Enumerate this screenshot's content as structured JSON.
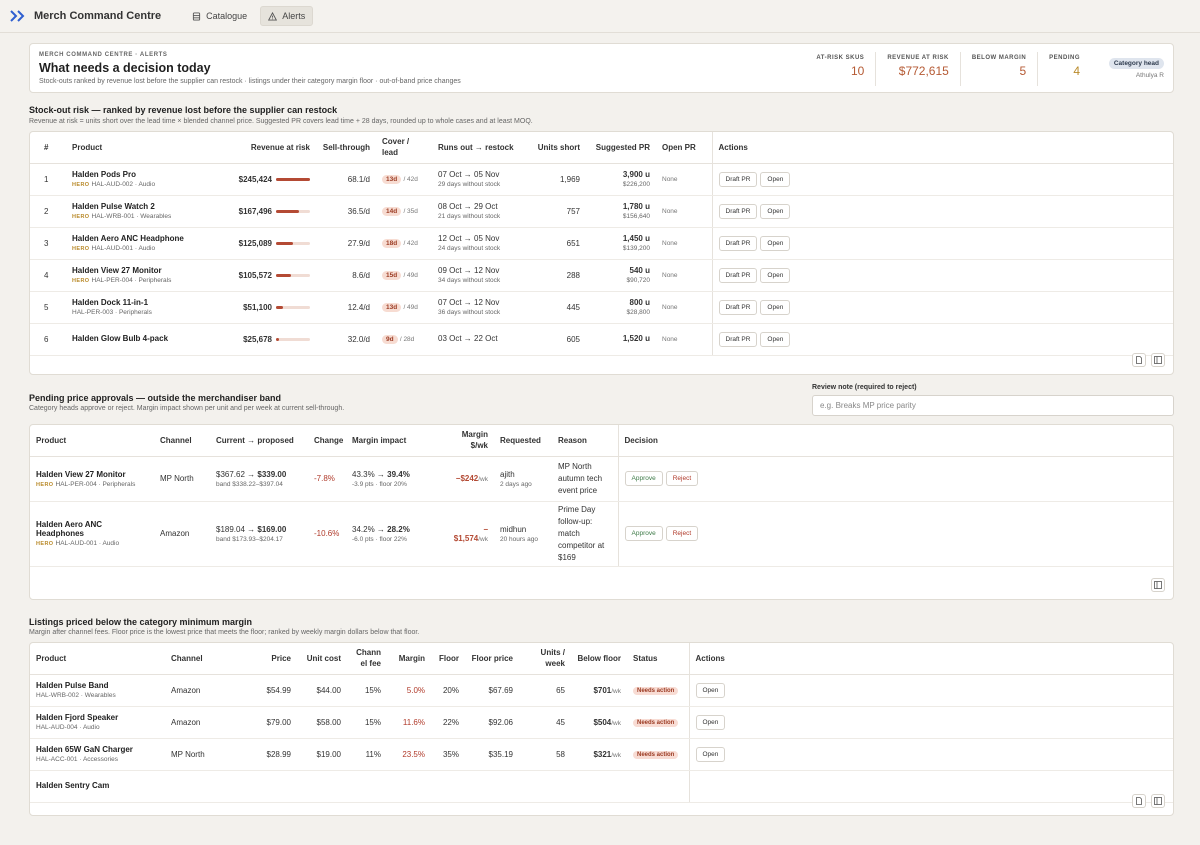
{
  "app": {
    "title": "Merch Command Centre"
  },
  "nav": [
    {
      "label": "Catalogue",
      "icon": "catalogue-icon"
    },
    {
      "label": "Alerts",
      "icon": "alert-triangle-icon",
      "active": true
    }
  ],
  "header": {
    "eyebrow": "MERCH COMMAND CENTRE · ALERTS",
    "title": "What needs a decision today",
    "subtitle": "Stock-outs ranked by revenue lost before the supplier can restock · listings under their category margin floor · out-of-band price changes",
    "kpis": [
      {
        "label": "AT-RISK SKUS",
        "value": "10"
      },
      {
        "label": "REVENUE AT RISK",
        "value": "$772,615"
      },
      {
        "label": "BELOW MARGIN",
        "value": "5"
      },
      {
        "label": "PENDING",
        "value": "4"
      }
    ],
    "role": "Category head",
    "user": "Athulya R"
  },
  "stockout": {
    "title": "Stock-out risk — ranked by revenue lost before the supplier can restock",
    "subtitle": "Revenue at risk = units short over the lead time × blended channel price. Suggested PR covers lead time + 28 days, rounded up to whole cases and at least MOQ.",
    "columns": [
      "#",
      "Product",
      "Revenue at risk",
      "Sell-through",
      "Cover / lead",
      "Runs out → restock",
      "Units short",
      "Suggested PR",
      "Open PR",
      "Actions"
    ],
    "rows": [
      {
        "n": "1",
        "name": "Halden Pods Pro",
        "hero": true,
        "sku": "HAL-AUD-002 · Audio",
        "revenue": "$245,424",
        "share": 1.0,
        "sell": "68.1/d",
        "cover": "13d",
        "lead": "/ 42d",
        "runs": "07 Oct → 05 Nov",
        "without": "29 days without stock",
        "short": "1,969",
        "pr_units": "3,900 u",
        "pr_value": "$226,200",
        "open_pr": "None"
      },
      {
        "n": "2",
        "name": "Halden Pulse Watch 2",
        "hero": true,
        "sku": "HAL-WRB-001 · Wearables",
        "revenue": "$167,496",
        "share": 0.68,
        "sell": "36.5/d",
        "cover": "14d",
        "lead": "/ 35d",
        "runs": "08 Oct → 29 Oct",
        "without": "21 days without stock",
        "short": "757",
        "pr_units": "1,780 u",
        "pr_value": "$156,640",
        "open_pr": "None"
      },
      {
        "n": "3",
        "name": "Halden Aero ANC Headphone",
        "hero": true,
        "sku": "HAL-AUD-001 · Audio",
        "revenue": "$125,089",
        "share": 0.51,
        "sell": "27.9/d",
        "cover": "18d",
        "lead": "/ 42d",
        "runs": "12 Oct → 05 Nov",
        "without": "24 days without stock",
        "short": "651",
        "pr_units": "1,450 u",
        "pr_value": "$139,200",
        "open_pr": "None"
      },
      {
        "n": "4",
        "name": "Halden View 27 Monitor",
        "hero": true,
        "sku": "HAL-PER-004 · Peripherals",
        "revenue": "$105,572",
        "share": 0.43,
        "sell": "8.6/d",
        "cover": "15d",
        "lead": "/ 49d",
        "runs": "09 Oct → 12 Nov",
        "without": "34 days without stock",
        "short": "288",
        "pr_units": "540 u",
        "pr_value": "$90,720",
        "open_pr": "None"
      },
      {
        "n": "5",
        "name": "Halden Dock 11-in-1",
        "hero": false,
        "sku": "HAL-PER-003 · Peripherals",
        "revenue": "$51,100",
        "share": 0.21,
        "sell": "12.4/d",
        "cover": "13d",
        "lead": "/ 49d",
        "runs": "07 Oct → 12 Nov",
        "without": "36 days without stock",
        "short": "445",
        "pr_units": "800 u",
        "pr_value": "$28,800",
        "open_pr": "None"
      },
      {
        "n": "6",
        "name": "Halden Glow Bulb 4-pack",
        "hero": false,
        "sku": "",
        "revenue": "$25,678",
        "share": 0.1,
        "sell": "32.0/d",
        "cover": "9d",
        "lead": "/ 28d",
        "runs": "03 Oct → 22 Oct",
        "without": "",
        "short": "605",
        "pr_units": "1,520 u",
        "pr_value": "",
        "open_pr": "None"
      }
    ],
    "draft_label": "Draft PR",
    "open_label": "Open"
  },
  "pricing": {
    "title": "Pending price approvals — outside the merchandiser band",
    "subtitle": "Category heads approve or reject. Margin impact shown per unit and per week at current sell-through.",
    "note_label": "Review note (required to reject)",
    "note_placeholder": "e.g. Breaks MP price parity",
    "columns": [
      "Product",
      "Channel",
      "Current → proposed",
      "Change",
      "Margin impact",
      "Margin $/wk",
      "Requested",
      "Reason",
      "Decision"
    ],
    "rows": [
      {
        "name": "Halden View 27 Monitor",
        "sku": "HAL-PER-004 · Peripherals",
        "channel": "MP North",
        "current": "$367.62 →",
        "proposed": "$339.00",
        "band": "band $338.22–$397.04",
        "change": "-7.8%",
        "m_from": "43.3% →",
        "m_to": "39.4%",
        "m_sub": "-3.9 pts · floor 20%",
        "mwk": "−$242",
        "by": "ajith",
        "when": "2 days ago",
        "reason": "MP North autumn tech event price"
      },
      {
        "name": "Halden Aero ANC Headphones",
        "sku": "HAL-AUD-001 · Audio",
        "channel": "Amazon",
        "current": "$189.04 →",
        "proposed": "$169.00",
        "band": "band $173.93–$204.17",
        "change": "-10.6%",
        "m_from": "34.2% →",
        "m_to": "28.2%",
        "m_sub": "-6.0 pts · floor 22%",
        "mwk": "−$1,574",
        "by": "midhun",
        "when": "20 hours ago",
        "reason": "Prime Day follow-up: match competitor at $169"
      }
    ],
    "approve_label": "Approve",
    "reject_label": "Reject",
    "per_week": "/wk"
  },
  "margin": {
    "title": "Listings priced below the category minimum margin",
    "subtitle": "Margin after channel fees. Floor price is the lowest price that meets the floor; ranked by weekly margin dollars below that floor.",
    "columns": [
      "Product",
      "Channel",
      "Price",
      "Unit cost",
      "Chann el fee",
      "Margin",
      "Floor",
      "Floor price",
      "Units / week",
      "Below floor",
      "Status",
      "Actions"
    ],
    "rows": [
      {
        "name": "Halden Pulse Band",
        "sku": "HAL-WRB-002 · Wearables",
        "channel": "Amazon",
        "price": "$54.99",
        "cost": "$44.00",
        "fee": "15%",
        "margin": "5.0%",
        "floor": "20%",
        "floor_price": "$67.69",
        "units": "65",
        "below": "$701",
        "status": "Needs action"
      },
      {
        "name": "Halden Fjord Speaker",
        "sku": "HAL-AUD-004 · Audio",
        "channel": "Amazon",
        "price": "$79.00",
        "cost": "$58.00",
        "fee": "15%",
        "margin": "11.6%",
        "floor": "22%",
        "floor_price": "$92.06",
        "units": "45",
        "below": "$504",
        "status": "Needs action"
      },
      {
        "name": "Halden 65W GaN Charger",
        "sku": "HAL-ACC-001 · Accessories",
        "channel": "MP North",
        "price": "$28.99",
        "cost": "$19.00",
        "fee": "11%",
        "margin": "23.5%",
        "floor": "35%",
        "floor_price": "$35.19",
        "units": "58",
        "below": "$321",
        "status": "Needs action"
      },
      {
        "name": "Halden Sentry Cam",
        "sku": "",
        "channel": "",
        "price": "",
        "cost": "",
        "fee": "",
        "margin": "",
        "floor": "",
        "floor_price": "",
        "units": "",
        "below": "",
        "status": ""
      }
    ],
    "open_label": "Open",
    "per_week": "/wk"
  },
  "hero_label": "HERO"
}
